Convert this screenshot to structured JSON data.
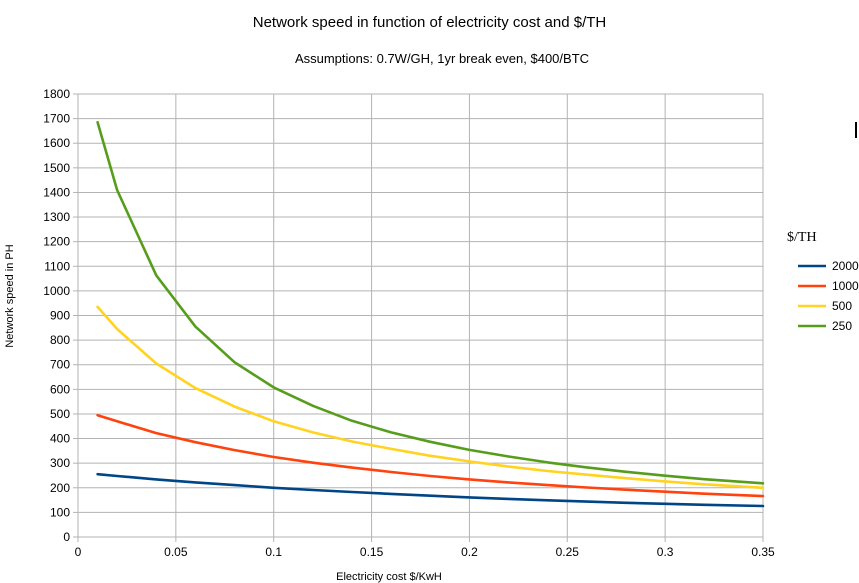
{
  "chart_data": {
    "type": "line",
    "title": "Network speed in function of electricity cost and $/TH",
    "subtitle": "Assumptions: 0.7W/GH, 1yr break even, $400/BTC",
    "xlabel": "Electricity cost $/KwH",
    "ylabel": "Network speed in PH",
    "xlim": [
      0,
      0.35
    ],
    "ylim": [
      0,
      1800
    ],
    "x_ticks": [
      "0",
      "0.05",
      "0.1",
      "0.15",
      "0.2",
      "0.25",
      "0.3",
      "0.35"
    ],
    "y_ticks": [
      "0",
      "100",
      "200",
      "300",
      "400",
      "500",
      "600",
      "700",
      "800",
      "900",
      "1000",
      "1100",
      "1200",
      "1300",
      "1400",
      "1500",
      "1600",
      "1700",
      "1800"
    ],
    "grid": true,
    "legend_title": "$/TH",
    "legend_position": "right",
    "x": [
      0.01,
      0.02,
      0.04,
      0.06,
      0.08,
      0.1,
      0.12,
      0.14,
      0.16,
      0.18,
      0.2,
      0.22,
      0.24,
      0.26,
      0.28,
      0.3,
      0.32,
      0.35
    ],
    "series": [
      {
        "name": "2000",
        "color": "#004586",
        "values": [
          255,
          248,
          234,
          222,
          211,
          200,
          191,
          183,
          175,
          168,
          161,
          155,
          149,
          144,
          139,
          135,
          131,
          126
        ]
      },
      {
        "name": "1000",
        "color": "#ff420e",
        "values": [
          495,
          470,
          422,
          385,
          353,
          325,
          302,
          282,
          264,
          248,
          234,
          222,
          211,
          201,
          192,
          184,
          176,
          166
        ]
      },
      {
        "name": "500",
        "color": "#ffd320",
        "values": [
          935,
          845,
          705,
          605,
          530,
          470,
          425,
          388,
          358,
          330,
          307,
          286,
          268,
          253,
          239,
          226,
          214,
          200
        ]
      },
      {
        "name": "250",
        "color": "#579d1c",
        "values": [
          1685,
          1410,
          1063,
          855,
          710,
          608,
          533,
          472,
          425,
          387,
          354,
          327,
          303,
          283,
          265,
          249,
          235,
          218
        ]
      }
    ]
  }
}
